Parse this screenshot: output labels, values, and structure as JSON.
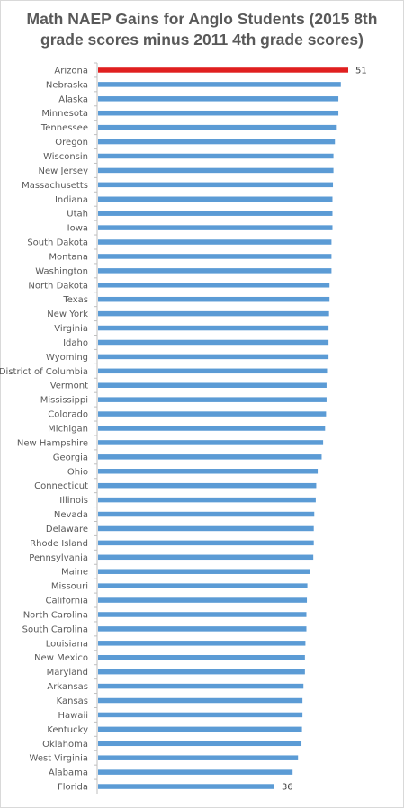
{
  "chart_data": {
    "type": "bar",
    "orientation": "horizontal",
    "title_line1": "Math NAEP Gains for Anglo Students (2015 8th",
    "title_line2": "grade scores minus 2011 4th grade scores)",
    "categories": [
      "Arizona",
      "Nebraska",
      "Alaska",
      "Minnesota",
      "Tennessee",
      "Oregon",
      "Wisconsin",
      "New Jersey",
      "Massachusetts",
      "Indiana",
      "Utah",
      "Iowa",
      "South Dakota",
      "Montana",
      "Washington",
      "North Dakota",
      "Texas",
      "New York",
      "Virginia",
      "Idaho",
      "Wyoming",
      "District of Columbia",
      "Vermont",
      "Mississippi",
      "Colorado",
      "Michigan",
      "New Hampshire",
      "Georgia",
      "Ohio",
      "Connecticut",
      "Illinois",
      "Nevada",
      "Delaware",
      "Rhode Island",
      "Pennsylvania",
      "Maine",
      "Missouri",
      "California",
      "North Carolina",
      "South Carolina",
      "Louisiana",
      "New Mexico",
      "Maryland",
      "Arkansas",
      "Kansas",
      "Hawaii",
      "Kentucky",
      "Oklahoma",
      "West Virginia",
      "Alabama",
      "Florida"
    ],
    "values": [
      51,
      49.5,
      49,
      49,
      48.5,
      48.3,
      48,
      48,
      47.9,
      47.8,
      47.8,
      47.8,
      47.6,
      47.6,
      47.6,
      47.2,
      47.2,
      47.1,
      47.0,
      47.0,
      47.0,
      46.7,
      46.6,
      46.6,
      46.5,
      46.3,
      45.9,
      45.6,
      44.8,
      44.5,
      44.4,
      44.1,
      44.0,
      44.0,
      43.9,
      43.3,
      42.7,
      42.6,
      42.5,
      42.5,
      42.3,
      42.2,
      42.2,
      41.9,
      41.7,
      41.7,
      41.6,
      41.5,
      40.8,
      39.7,
      36
    ],
    "data_labels": {
      "first": "51",
      "last": "36"
    },
    "xlim": [
      0,
      51
    ],
    "highlight_index": 0,
    "colors": {
      "highlight": "#e01f1f",
      "bar": "#5b9bd5",
      "axis": "#bfbfbf",
      "text": "#595959"
    },
    "grid": false,
    "legend": "none"
  }
}
